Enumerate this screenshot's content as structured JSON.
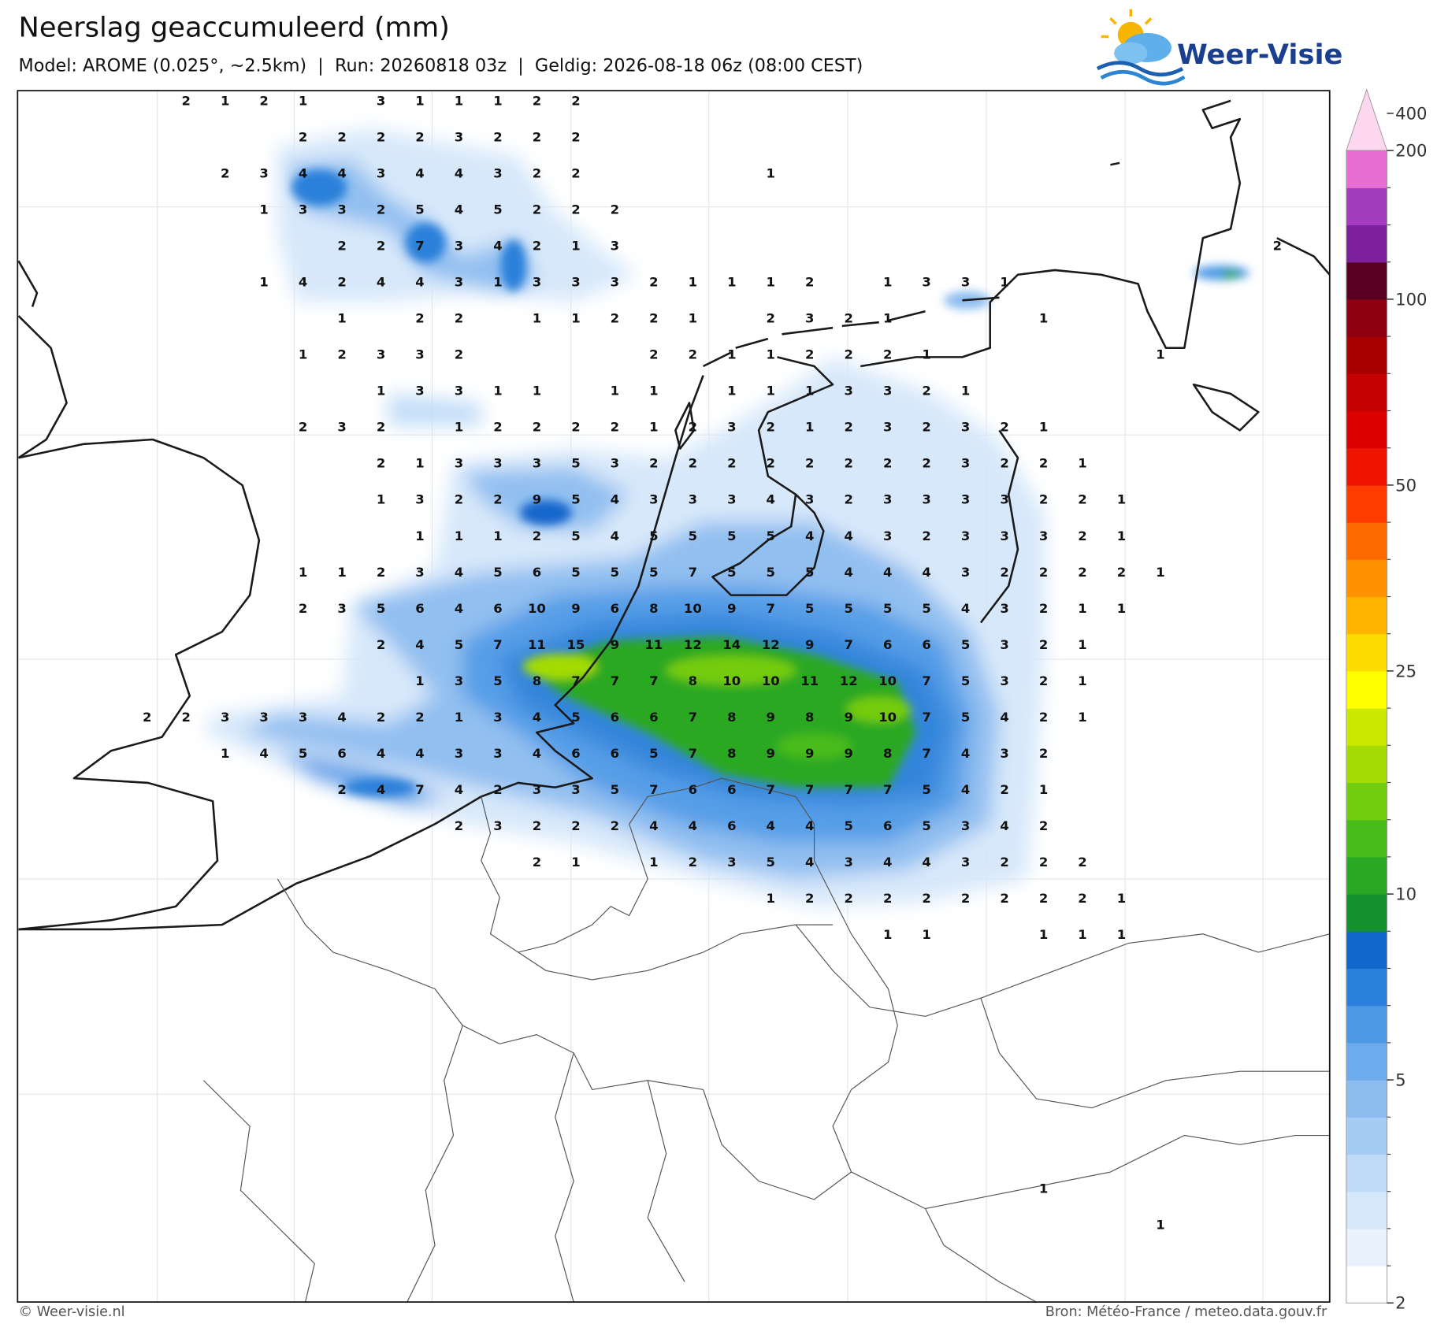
{
  "header": {
    "title": "Neerslag geaccumuleerd (mm)",
    "subtitle": "Model: AROME (0.025°, ~2.5km)  |  Run: 20260818 03z  |  Geldig: 2026-08-18 06z (08:00 CEST)",
    "logo": "Weer-Visie"
  },
  "map": {
    "grid": [
      [
        null,
        2,
        1,
        2,
        1,
        null,
        3,
        1,
        1,
        1,
        2,
        2
      ],
      [
        null,
        null,
        null,
        null,
        2,
        2,
        2,
        2,
        3,
        2,
        2,
        2
      ],
      [
        null,
        null,
        2,
        3,
        4,
        4,
        3,
        4,
        4,
        3,
        2,
        2,
        null,
        null,
        null,
        null,
        1
      ],
      [
        null,
        null,
        null,
        1,
        3,
        3,
        2,
        5,
        4,
        5,
        2,
        2,
        2
      ],
      [
        null,
        null,
        null,
        null,
        null,
        2,
        2,
        7,
        3,
        4,
        2,
        1,
        3,
        null,
        null,
        null,
        null,
        null,
        null,
        null,
        null,
        null,
        null,
        null,
        null,
        null,
        null,
        null,
        null,
        2
      ],
      [
        null,
        null,
        null,
        1,
        4,
        2,
        4,
        4,
        3,
        1,
        3,
        3,
        3,
        2,
        1,
        1,
        1,
        2,
        null,
        1,
        3,
        3,
        1
      ],
      [
        null,
        null,
        null,
        null,
        null,
        1,
        null,
        2,
        2,
        null,
        1,
        1,
        2,
        2,
        1,
        null,
        2,
        3,
        2,
        1,
        null,
        null,
        null,
        1
      ],
      [
        null,
        null,
        null,
        null,
        1,
        2,
        3,
        3,
        2,
        null,
        null,
        null,
        null,
        2,
        2,
        1,
        1,
        2,
        2,
        2,
        1,
        null,
        null,
        null,
        null,
        null,
        1
      ],
      [
        null,
        null,
        null,
        null,
        null,
        null,
        1,
        3,
        3,
        1,
        1,
        null,
        1,
        1,
        null,
        1,
        1,
        1,
        3,
        3,
        2,
        1
      ],
      [
        null,
        null,
        null,
        null,
        2,
        3,
        2,
        null,
        1,
        2,
        2,
        2,
        2,
        1,
        2,
        3,
        2,
        1,
        2,
        3,
        2,
        3,
        2,
        1
      ],
      [
        null,
        null,
        null,
        null,
        null,
        null,
        2,
        1,
        3,
        3,
        3,
        5,
        3,
        2,
        2,
        2,
        2,
        2,
        2,
        2,
        2,
        3,
        2,
        2,
        1
      ],
      [
        null,
        null,
        null,
        null,
        null,
        null,
        1,
        3,
        2,
        2,
        9,
        5,
        4,
        3,
        3,
        3,
        4,
        3,
        2,
        3,
        3,
        3,
        3,
        2,
        2,
        1
      ],
      [
        null,
        null,
        null,
        null,
        null,
        null,
        null,
        1,
        1,
        1,
        2,
        5,
        4,
        5,
        5,
        5,
        5,
        4,
        4,
        3,
        2,
        3,
        3,
        3,
        2,
        1
      ],
      [
        null,
        null,
        null,
        null,
        1,
        1,
        2,
        3,
        4,
        5,
        6,
        5,
        5,
        5,
        7,
        5,
        5,
        5,
        4,
        4,
        4,
        3,
        2,
        2,
        2,
        2,
        1
      ],
      [
        null,
        null,
        null,
        null,
        2,
        3,
        5,
        6,
        4,
        6,
        10,
        9,
        6,
        8,
        10,
        9,
        7,
        5,
        5,
        5,
        5,
        4,
        3,
        2,
        1,
        1
      ],
      [
        null,
        null,
        null,
        null,
        null,
        null,
        2,
        4,
        5,
        7,
        11,
        15,
        9,
        11,
        12,
        14,
        12,
        9,
        7,
        6,
        6,
        5,
        3,
        2,
        1
      ],
      [
        null,
        null,
        null,
        null,
        null,
        null,
        null,
        1,
        3,
        5,
        8,
        7,
        7,
        7,
        8,
        10,
        10,
        11,
        12,
        10,
        7,
        5,
        3,
        2,
        1
      ],
      [
        2,
        2,
        3,
        3,
        3,
        4,
        2,
        2,
        1,
        3,
        4,
        5,
        6,
        6,
        7,
        8,
        9,
        8,
        9,
        10,
        7,
        5,
        4,
        2,
        1
      ],
      [
        null,
        null,
        1,
        4,
        5,
        6,
        4,
        4,
        3,
        3,
        4,
        6,
        6,
        5,
        7,
        8,
        9,
        9,
        9,
        8,
        7,
        4,
        3,
        2
      ],
      [
        null,
        null,
        null,
        null,
        null,
        2,
        4,
        7,
        4,
        2,
        3,
        3,
        5,
        7,
        6,
        6,
        7,
        7,
        7,
        7,
        5,
        4,
        2,
        1
      ],
      [
        null,
        null,
        null,
        null,
        null,
        null,
        null,
        null,
        2,
        3,
        2,
        2,
        2,
        4,
        4,
        6,
        4,
        4,
        5,
        6,
        5,
        3,
        4,
        2
      ],
      [
        null,
        null,
        null,
        null,
        null,
        null,
        null,
        null,
        null,
        null,
        2,
        1,
        null,
        1,
        2,
        3,
        5,
        4,
        3,
        4,
        4,
        3,
        2,
        2,
        2
      ],
      [
        null,
        null,
        null,
        null,
        null,
        null,
        null,
        null,
        null,
        null,
        null,
        null,
        null,
        null,
        null,
        null,
        1,
        2,
        2,
        2,
        2,
        2,
        2,
        2,
        2,
        1
      ],
      [
        null,
        null,
        null,
        null,
        null,
        null,
        null,
        null,
        null,
        null,
        null,
        null,
        null,
        null,
        null,
        null,
        null,
        null,
        null,
        1,
        1,
        null,
        null,
        1,
        1,
        1
      ],
      [],
      [],
      [],
      [],
      [],
      [],
      [
        null,
        null,
        null,
        null,
        null,
        null,
        null,
        null,
        null,
        null,
        null,
        null,
        null,
        null,
        null,
        null,
        null,
        null,
        null,
        null,
        null,
        null,
        null,
        1
      ],
      [
        null,
        null,
        null,
        null,
        null,
        null,
        null,
        null,
        null,
        null,
        null,
        null,
        null,
        null,
        null,
        null,
        null,
        null,
        null,
        null,
        null,
        null,
        null,
        null,
        null,
        null,
        1
      ]
    ]
  },
  "colorbar": {
    "levels": [
      2,
      2.5,
      3,
      3.5,
      4,
      4.5,
      5,
      6,
      7,
      8,
      9,
      10,
      12,
      14,
      16,
      18,
      20,
      25,
      30,
      35,
      40,
      45,
      50,
      60,
      70,
      80,
      90,
      100,
      125,
      150,
      175,
      200,
      400
    ],
    "colors": [
      "#ffffff",
      "#e9f2fc",
      "#d5e7fa",
      "#bfdbf7",
      "#a5ccf4",
      "#8cbcf0",
      "#6cabec",
      "#4d99e6",
      "#2a80da",
      "#1366cc",
      "#14912e",
      "#2aa823",
      "#48bc1b",
      "#74cc0f",
      "#a4dc05",
      "#cbe800",
      "#ffff00",
      "#ffdc00",
      "#ffb400",
      "#ff9200",
      "#ff6a00",
      "#ff3c00",
      "#ee1400",
      "#dc0000",
      "#c40000",
      "#a80000",
      "#8e0010",
      "#5a0020",
      "#7c20a0",
      "#a43cc0",
      "#e86ed4",
      "#fdd6f0"
    ],
    "ticks": [
      2,
      5,
      10,
      25,
      50,
      100,
      200,
      400
    ]
  },
  "footer": {
    "credit": "© Weer-visie.nl",
    "source": "Bron: Météo-France / meteo.data.gouv.fr"
  }
}
